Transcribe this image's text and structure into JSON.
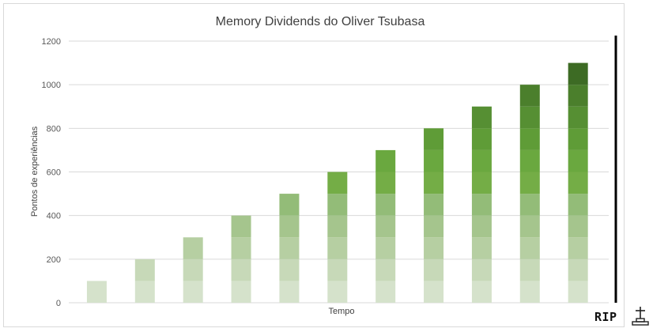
{
  "chart_data": {
    "type": "bar",
    "title": "Memory Dividends do Oliver Tsubasa",
    "xlabel": "Tempo",
    "ylabel": "Pontos de experiências",
    "ylim": [
      0,
      1200
    ],
    "yticks": [
      0,
      200,
      400,
      600,
      800,
      1000,
      1200
    ],
    "grid": true,
    "stacked": true,
    "segment_step": 100,
    "values": [
      100,
      200,
      300,
      400,
      500,
      600,
      700,
      800,
      900,
      1000,
      1100
    ],
    "segment_colors": [
      "#d5e2cb",
      "#c7d9b8",
      "#b6cfa2",
      "#a5c58d",
      "#93bc78",
      "#74ad46",
      "#6aa83f",
      "#5f9c37",
      "#568f33",
      "#4b7f2c",
      "#3d6b24"
    ]
  },
  "annotation": {
    "text": "RIP",
    "icon": "grave-icon",
    "line_color": "#000000"
  }
}
